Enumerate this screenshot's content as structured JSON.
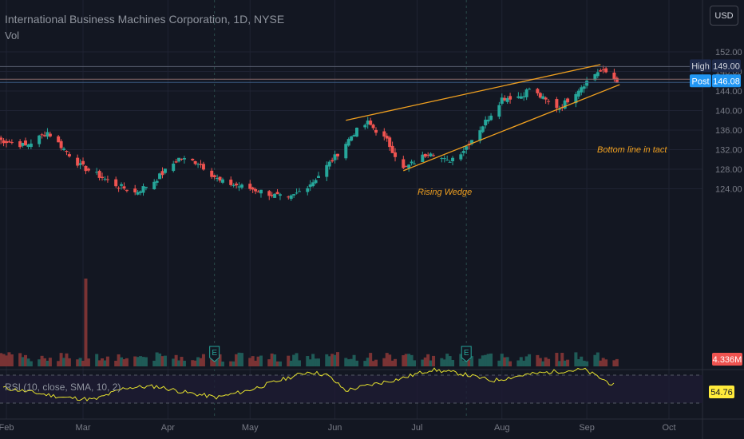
{
  "header": {
    "title": "International Business Machines Corporation, 1D, NYSE",
    "volume_label": "Vol",
    "currency_button": "USD"
  },
  "price_axis": {
    "ticks": [
      "152.00",
      "148.00",
      "144.00",
      "140.00",
      "136.00",
      "132.00",
      "128.00",
      "124.00"
    ],
    "high_tag": {
      "label": "High",
      "value": "149.00"
    },
    "post_tag": {
      "label": "Post",
      "value": "146.08"
    },
    "volume_value": "4.336M",
    "rsi_value": "54.76"
  },
  "time_axis": {
    "months": [
      "Feb",
      "Mar",
      "Apr",
      "May",
      "Jun",
      "Jul",
      "Aug",
      "Sep",
      "Oct"
    ]
  },
  "annotations": {
    "rising_wedge": "Rising Wedge",
    "bottom_line": "Bottom line in tact"
  },
  "earnings_markers": [
    "E",
    "E"
  ],
  "rsi": {
    "label": "RSI (10, close, SMA, 10, 2)",
    "upper_band": 70,
    "lower_band": 30
  },
  "colors": {
    "background": "#131722",
    "up": "#26a69a",
    "down": "#ef5350",
    "wedge": "#f0a020",
    "rsi_line": "#e6e22e",
    "high_tag": "#1e2a4a",
    "post_tag": "#2196f3",
    "volume_tag": "#ef5350",
    "rsi_tag": "#ffeb3b"
  },
  "chart_data": {
    "type": "candlestick",
    "title": "International Business Machines Corporation, 1D, NYSE",
    "y_range": [
      120.6,
      154.2
    ],
    "high_level": 149.0,
    "post_level": 146.08,
    "wedge_upper": {
      "start": [
        "2023-06-05",
        138.0
      ],
      "end": [
        "2023-09-06",
        149.4
      ]
    },
    "wedge_lower": {
      "start": [
        "2023-06-26",
        127.7
      ],
      "end": [
        "2023-09-13",
        145.3
      ]
    },
    "ohlc_anchors": [
      {
        "date": "2023-01-27",
        "close": 134.3
      },
      {
        "date": "2023-02-08",
        "close": 132.8
      },
      {
        "date": "2023-02-16",
        "close": 135.6
      },
      {
        "date": "2023-02-28",
        "close": 128.7
      },
      {
        "date": "2023-03-13",
        "close": 124.8
      },
      {
        "date": "2023-03-20",
        "close": 123.2
      },
      {
        "date": "2023-03-27",
        "close": 125.6
      },
      {
        "date": "2023-04-05",
        "close": 130.2
      },
      {
        "date": "2023-04-12",
        "close": 129.4
      },
      {
        "date": "2023-04-20",
        "close": 125.5
      },
      {
        "date": "2023-05-05",
        "close": 123.5
      },
      {
        "date": "2023-05-15",
        "close": 121.8
      },
      {
        "date": "2023-05-24",
        "close": 125.5
      },
      {
        "date": "2023-06-01",
        "close": 130.5
      },
      {
        "date": "2023-06-08",
        "close": 135.5
      },
      {
        "date": "2023-06-13",
        "close": 137.5
      },
      {
        "date": "2023-06-20",
        "close": 133.8
      },
      {
        "date": "2023-06-26",
        "close": 128.0
      },
      {
        "date": "2023-07-06",
        "close": 131.7
      },
      {
        "date": "2023-07-12",
        "close": 129.5
      },
      {
        "date": "2023-07-18",
        "close": 132.0
      },
      {
        "date": "2023-07-25",
        "close": 137.0
      },
      {
        "date": "2023-08-01",
        "close": 142.5
      },
      {
        "date": "2023-08-08",
        "close": 143.0
      },
      {
        "date": "2023-08-11",
        "close": 144.5
      },
      {
        "date": "2023-08-17",
        "close": 142.0
      },
      {
        "date": "2023-08-22",
        "close": 140.5
      },
      {
        "date": "2023-08-30",
        "close": 145.0
      },
      {
        "date": "2023-09-05",
        "close": 148.0
      },
      {
        "date": "2023-09-08",
        "close": 147.8
      },
      {
        "date": "2023-09-12",
        "close": 146.1
      }
    ],
    "rsi_anchors": [
      [
        0,
        52
      ],
      [
        0.05,
        45
      ],
      [
        0.1,
        38
      ],
      [
        0.15,
        35
      ],
      [
        0.2,
        52
      ],
      [
        0.25,
        54
      ],
      [
        0.3,
        45
      ],
      [
        0.35,
        38
      ],
      [
        0.4,
        48
      ],
      [
        0.45,
        62
      ],
      [
        0.5,
        75
      ],
      [
        0.53,
        70
      ],
      [
        0.56,
        48
      ],
      [
        0.6,
        56
      ],
      [
        0.65,
        65
      ],
      [
        0.7,
        78
      ],
      [
        0.75,
        72
      ],
      [
        0.8,
        62
      ],
      [
        0.85,
        70
      ],
      [
        0.9,
        75
      ],
      [
        0.95,
        78
      ],
      [
        1.0,
        55
      ]
    ]
  }
}
